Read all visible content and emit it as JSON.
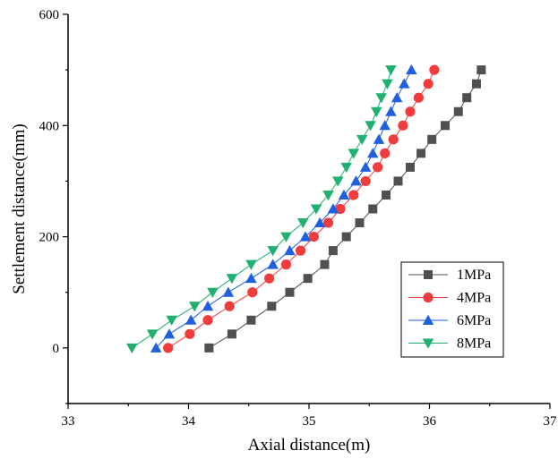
{
  "chart_data": {
    "type": "scatter",
    "title": "",
    "xlabel": "Axial distance(m)",
    "ylabel": "Settlement distance(mm)",
    "xlim": [
      33,
      37
    ],
    "ylim": [
      -100,
      600
    ],
    "xticks": [
      33,
      34,
      35,
      36,
      37
    ],
    "yticks": [
      0,
      200,
      400,
      600
    ],
    "grid": false,
    "legend_position": "right",
    "y": [
      0,
      25,
      50,
      75,
      100,
      125,
      150,
      175,
      200,
      225,
      250,
      275,
      300,
      325,
      350,
      375,
      400,
      425,
      450,
      475,
      500
    ],
    "series": [
      {
        "name": "1MPa",
        "color": "#505050",
        "marker": "square",
        "x": [
          34.17,
          34.36,
          34.52,
          34.69,
          34.84,
          34.99,
          35.13,
          35.2,
          35.31,
          35.42,
          35.53,
          35.64,
          35.74,
          35.84,
          35.93,
          36.02,
          36.13,
          36.24,
          36.31,
          36.39,
          36.43
        ]
      },
      {
        "name": "4MPa",
        "color": "#f03c3c",
        "marker": "circle",
        "x": [
          33.83,
          34.01,
          34.16,
          34.34,
          34.53,
          34.67,
          34.81,
          34.93,
          35.04,
          35.16,
          35.26,
          35.37,
          35.47,
          35.57,
          35.63,
          35.7,
          35.78,
          35.84,
          35.91,
          35.99,
          36.04
        ]
      },
      {
        "name": "6MPa",
        "color": "#1f5fe0",
        "marker": "triangle-up",
        "x": [
          33.73,
          33.84,
          34.02,
          34.16,
          34.33,
          34.52,
          34.7,
          34.84,
          34.97,
          35.09,
          35.2,
          35.29,
          35.39,
          35.47,
          35.53,
          35.58,
          35.63,
          35.68,
          35.73,
          35.79,
          35.85
        ]
      },
      {
        "name": "8MPa",
        "color": "#20b070",
        "marker": "triangle-down",
        "x": [
          33.53,
          33.7,
          33.86,
          34.05,
          34.2,
          34.36,
          34.52,
          34.7,
          34.81,
          34.95,
          35.06,
          35.16,
          35.24,
          35.31,
          35.37,
          35.44,
          35.51,
          35.56,
          35.6,
          35.65,
          35.68
        ]
      }
    ]
  }
}
